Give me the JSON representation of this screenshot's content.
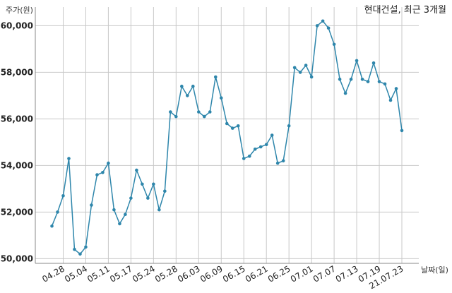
{
  "chart_data": {
    "type": "line",
    "title": "현대건설, 최근 3개월",
    "ylabel": "주가(원)",
    "xlabel": "날짜(일)",
    "ylim": [
      49800,
      60800
    ],
    "yticks": [
      50000,
      52000,
      54000,
      56000,
      58000,
      60000
    ],
    "ytick_labels": [
      "50,000",
      "52,000",
      "54,000",
      "56,000",
      "58,000",
      "60,000"
    ],
    "grid": true,
    "line_color": "#2e86ab",
    "x_ticks": [
      {
        "index": 2,
        "label": "04.28"
      },
      {
        "index": 6,
        "label": "05.04"
      },
      {
        "index": 10,
        "label": "05.11"
      },
      {
        "index": 14,
        "label": "05.17"
      },
      {
        "index": 18,
        "label": "05.24"
      },
      {
        "index": 22,
        "label": "05.28"
      },
      {
        "index": 26,
        "label": "06.03"
      },
      {
        "index": 30,
        "label": "06.09"
      },
      {
        "index": 34,
        "label": "06.15"
      },
      {
        "index": 38,
        "label": "06.21"
      },
      {
        "index": 42,
        "label": "06.25"
      },
      {
        "index": 46,
        "label": "07.01"
      },
      {
        "index": 50,
        "label": "07.07"
      },
      {
        "index": 54,
        "label": "07.13"
      },
      {
        "index": 58,
        "label": "07.19"
      },
      {
        "index": 62,
        "label": "21.07.23"
      }
    ],
    "series": [
      {
        "values": [
          51400,
          52000,
          52700,
          54300,
          50400,
          50200,
          50500,
          52300,
          53600,
          53700,
          54100,
          52100,
          51500,
          51900,
          52600,
          53800,
          53200,
          52600,
          53200,
          52100,
          52900,
          56300,
          56100,
          57400,
          57000,
          57400,
          56300,
          56100,
          56300,
          57800,
          56900,
          55800,
          55600,
          55700,
          54300,
          54400,
          54700,
          54800,
          54900,
          55300,
          54100,
          54200,
          55700,
          58200,
          58000,
          58300,
          57800,
          60000,
          60200,
          59900,
          59200,
          57700,
          57100,
          57700,
          58500,
          57700,
          57600,
          58400,
          57600,
          57500,
          56800,
          57300,
          55500
        ]
      }
    ]
  }
}
